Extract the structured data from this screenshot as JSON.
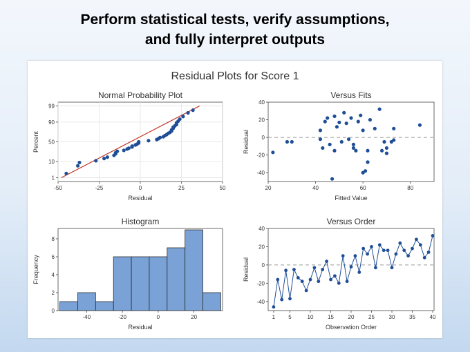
{
  "header": {
    "line1": "Perform statistical tests, verify assumptions,",
    "line2": "and fully interpret outputs"
  },
  "figure_title": "Residual Plots for Score 1",
  "colors": {
    "point": "#1f4e96",
    "bar": "#7aa2d6",
    "bar_edge": "#2b2b2b",
    "fit_line": "#c0392b",
    "ref_line": "#9a9a9a",
    "grid": "#e3e3e3"
  },
  "chart_data": [
    {
      "type": "scatter",
      "title": "Normal Probability Plot",
      "xlabel": "Residual",
      "ylabel": "Percent",
      "xlim": [
        -50,
        50
      ],
      "xticks": [
        -50,
        -25,
        0,
        25,
        50
      ],
      "yticks": [
        1,
        10,
        50,
        90,
        99
      ],
      "points": [
        [
          -45,
          2
        ],
        [
          -38,
          6
        ],
        [
          -37,
          9
        ],
        [
          -27,
          11
        ],
        [
          -22,
          14
        ],
        [
          -20,
          16
        ],
        [
          -16,
          19
        ],
        [
          -15,
          22
        ],
        [
          -15,
          24
        ],
        [
          -14,
          27
        ],
        [
          -10,
          29
        ],
        [
          -8,
          32
        ],
        [
          -7,
          34
        ],
        [
          -5,
          37
        ],
        [
          -5,
          39
        ],
        [
          -3,
          42
        ],
        [
          -2,
          44
        ],
        [
          -1,
          47
        ],
        [
          -1,
          50
        ],
        [
          5,
          53
        ],
        [
          10,
          56
        ],
        [
          11,
          58
        ],
        [
          12,
          61
        ],
        [
          14,
          63
        ],
        [
          15,
          66
        ],
        [
          16,
          68
        ],
        [
          17,
          71
        ],
        [
          18,
          73
        ],
        [
          19,
          76
        ],
        [
          19,
          78
        ],
        [
          20,
          81
        ],
        [
          20,
          83
        ],
        [
          21,
          85
        ],
        [
          22,
          87
        ],
        [
          22,
          89
        ],
        [
          23,
          91
        ],
        [
          24,
          93
        ],
        [
          26,
          95
        ],
        [
          29,
          97
        ],
        [
          32,
          98
        ]
      ],
      "fit_line": [
        [
          -48,
          1
        ],
        [
          36,
          99
        ]
      ]
    },
    {
      "type": "scatter",
      "title": "Versus Fits",
      "xlabel": "Fitted Value",
      "ylabel": "Residual",
      "xlim": [
        20,
        90
      ],
      "ylim": [
        -50,
        40
      ],
      "xticks": [
        20,
        40,
        60,
        80
      ],
      "yticks": [
        -40,
        -20,
        0,
        20,
        40
      ],
      "reference_y": 0,
      "points": [
        [
          22,
          -17
        ],
        [
          28,
          -5
        ],
        [
          30,
          -5
        ],
        [
          42,
          -2
        ],
        [
          42,
          8
        ],
        [
          43,
          -12
        ],
        [
          44,
          18
        ],
        [
          45,
          22
        ],
        [
          46,
          -8
        ],
        [
          47,
          -47
        ],
        [
          48,
          24
        ],
        [
          48,
          -15
        ],
        [
          49,
          12
        ],
        [
          50,
          17
        ],
        [
          51,
          -5
        ],
        [
          52,
          28
        ],
        [
          53,
          16
        ],
        [
          54,
          -2
        ],
        [
          55,
          22
        ],
        [
          56,
          -12
        ],
        [
          56,
          -8
        ],
        [
          57,
          -15
        ],
        [
          58,
          18
        ],
        [
          59,
          25
        ],
        [
          60,
          8
        ],
        [
          60,
          -40
        ],
        [
          61,
          -38
        ],
        [
          62,
          -28
        ],
        [
          62,
          -15
        ],
        [
          63,
          20
        ],
        [
          65,
          10
        ],
        [
          67,
          32
        ],
        [
          68,
          -15
        ],
        [
          69,
          -5
        ],
        [
          70,
          -18
        ],
        [
          70,
          -12
        ],
        [
          72,
          -5
        ],
        [
          73,
          10
        ],
        [
          73,
          -3
        ],
        [
          84,
          14
        ]
      ]
    },
    {
      "type": "bar",
      "title": "Histogram",
      "xlabel": "Residual",
      "ylabel": "Frequency",
      "ylim": [
        0,
        9
      ],
      "xticks": [
        -40,
        -20,
        0,
        20
      ],
      "yticks": [
        0,
        2,
        4,
        6,
        8
      ],
      "bin_edges": [
        -55,
        -45,
        -35,
        -25,
        -15,
        -5,
        5,
        15,
        25,
        35
      ],
      "values": [
        1,
        2,
        1,
        6,
        6,
        6,
        7,
        9,
        2
      ]
    },
    {
      "type": "line",
      "title": "Versus Order",
      "xlabel": "Observation Order",
      "ylabel": "Residual",
      "xlim": [
        0,
        40
      ],
      "ylim": [
        -50,
        40
      ],
      "xticks": [
        1,
        5,
        10,
        15,
        20,
        25,
        30,
        35,
        40
      ],
      "yticks": [
        -40,
        -20,
        0,
        20,
        40
      ],
      "reference_y": 0,
      "x": [
        1,
        2,
        3,
        4,
        5,
        6,
        7,
        8,
        9,
        10,
        11,
        12,
        13,
        14,
        15,
        16,
        17,
        18,
        19,
        20,
        21,
        22,
        23,
        24,
        25,
        26,
        27,
        28,
        29,
        30,
        31,
        32,
        33,
        34,
        35,
        36,
        37,
        38,
        39,
        40
      ],
      "y": [
        -46,
        -16,
        -38,
        -6,
        -37,
        -5,
        -14,
        -18,
        -28,
        -16,
        -3,
        -18,
        -5,
        4,
        -16,
        -12,
        -20,
        10,
        -18,
        -2,
        10,
        -8,
        18,
        12,
        20,
        -3,
        22,
        16,
        16,
        -3,
        12,
        24,
        16,
        10,
        18,
        28,
        22,
        8,
        14,
        32
      ]
    }
  ]
}
